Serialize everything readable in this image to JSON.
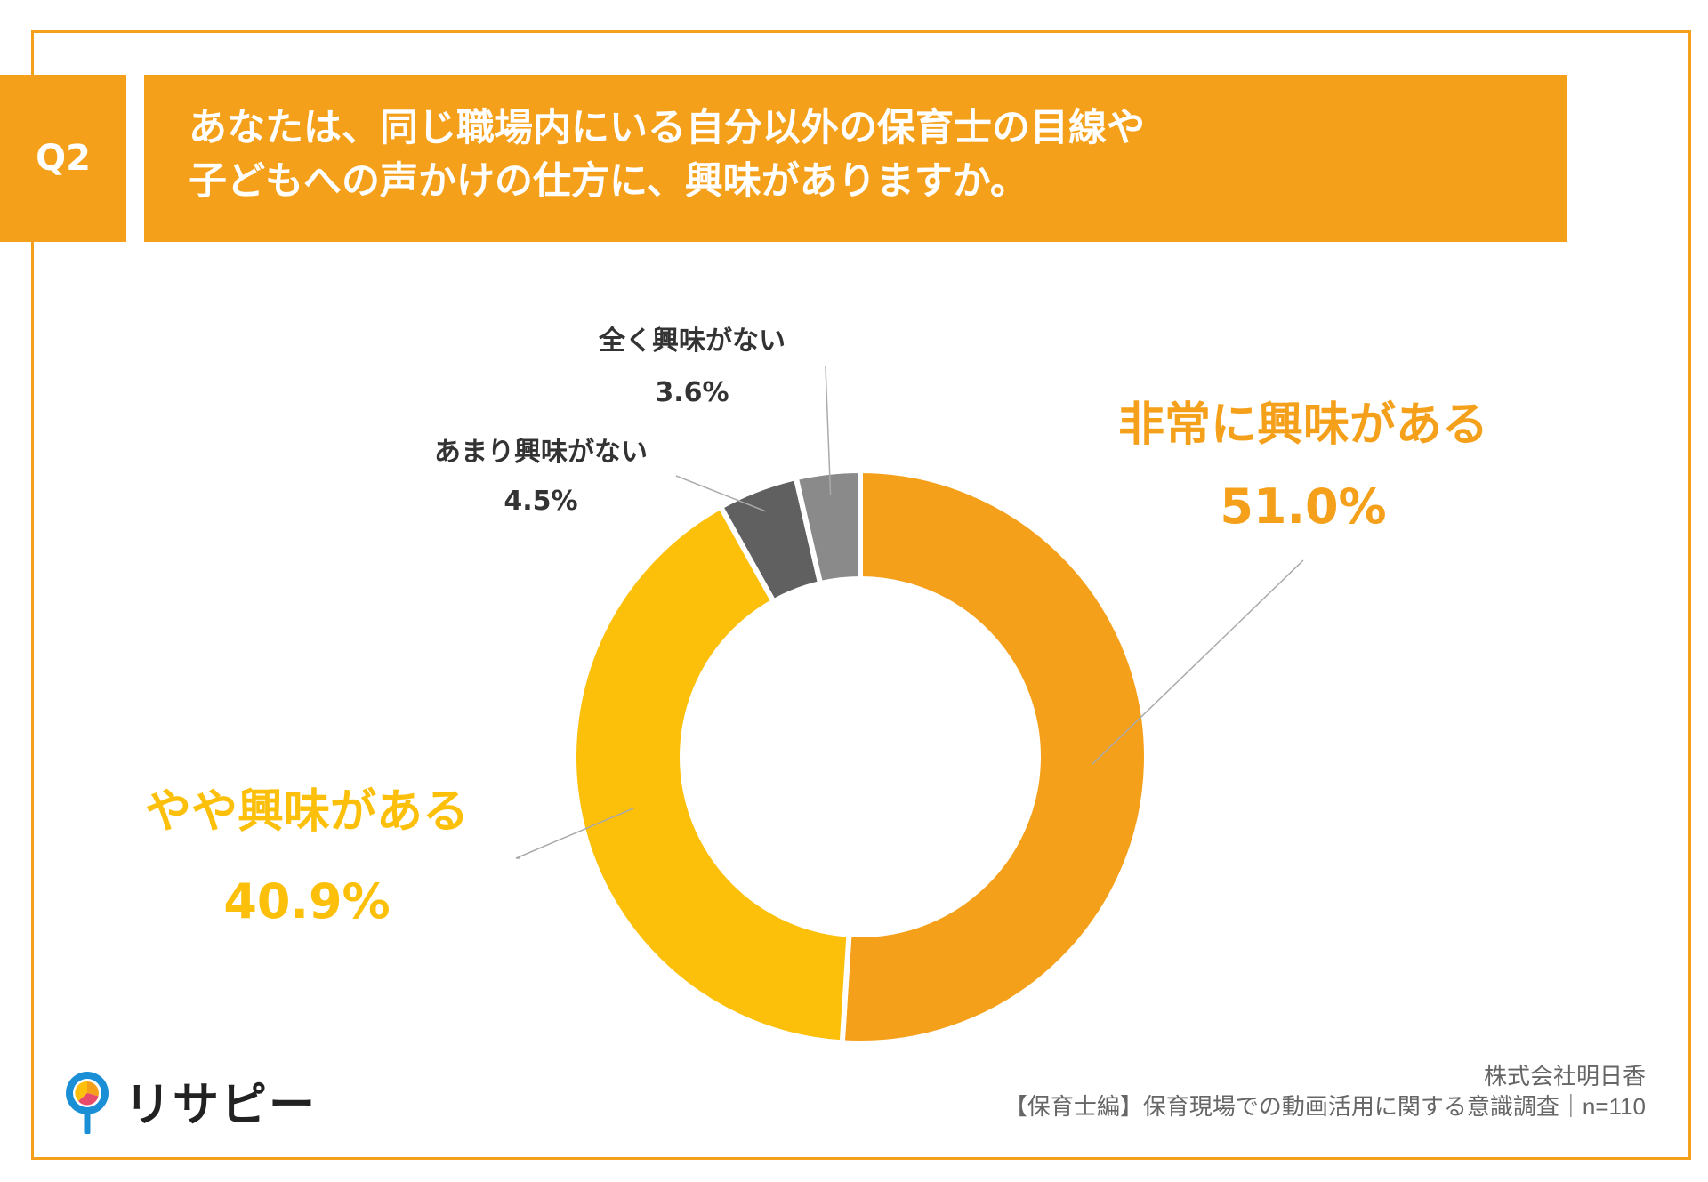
{
  "header": {
    "q_label": "Q2",
    "title_line1": "あなたは、同じ職場内にいる自分以外の保育士の目線や",
    "title_line2": "子どもへの声かけの仕方に、興味がありますか。"
  },
  "chart_data": {
    "type": "pie",
    "donut": true,
    "categories": [
      "非常に興味がある",
      "やや興味がある",
      "あまり興味がない",
      "全く興味がない"
    ],
    "values": [
      51.0,
      40.9,
      4.5,
      3.6
    ],
    "value_labels": [
      "51.0%",
      "40.9%",
      "4.5%",
      "3.6%"
    ],
    "colors": [
      "#f5a01a",
      "#fcbf0a",
      "#606060",
      "#8a8a8a"
    ],
    "label_colors": [
      "#f5a01a",
      "#fcbf0a",
      "#333333",
      "#333333"
    ]
  },
  "footer": {
    "company": "株式会社明日香",
    "survey": "【保育士編】保育現場での動画活用に関する意識調査｜n=110"
  },
  "logo": {
    "text": "リサピー",
    "icon": "pin-pie-icon"
  }
}
